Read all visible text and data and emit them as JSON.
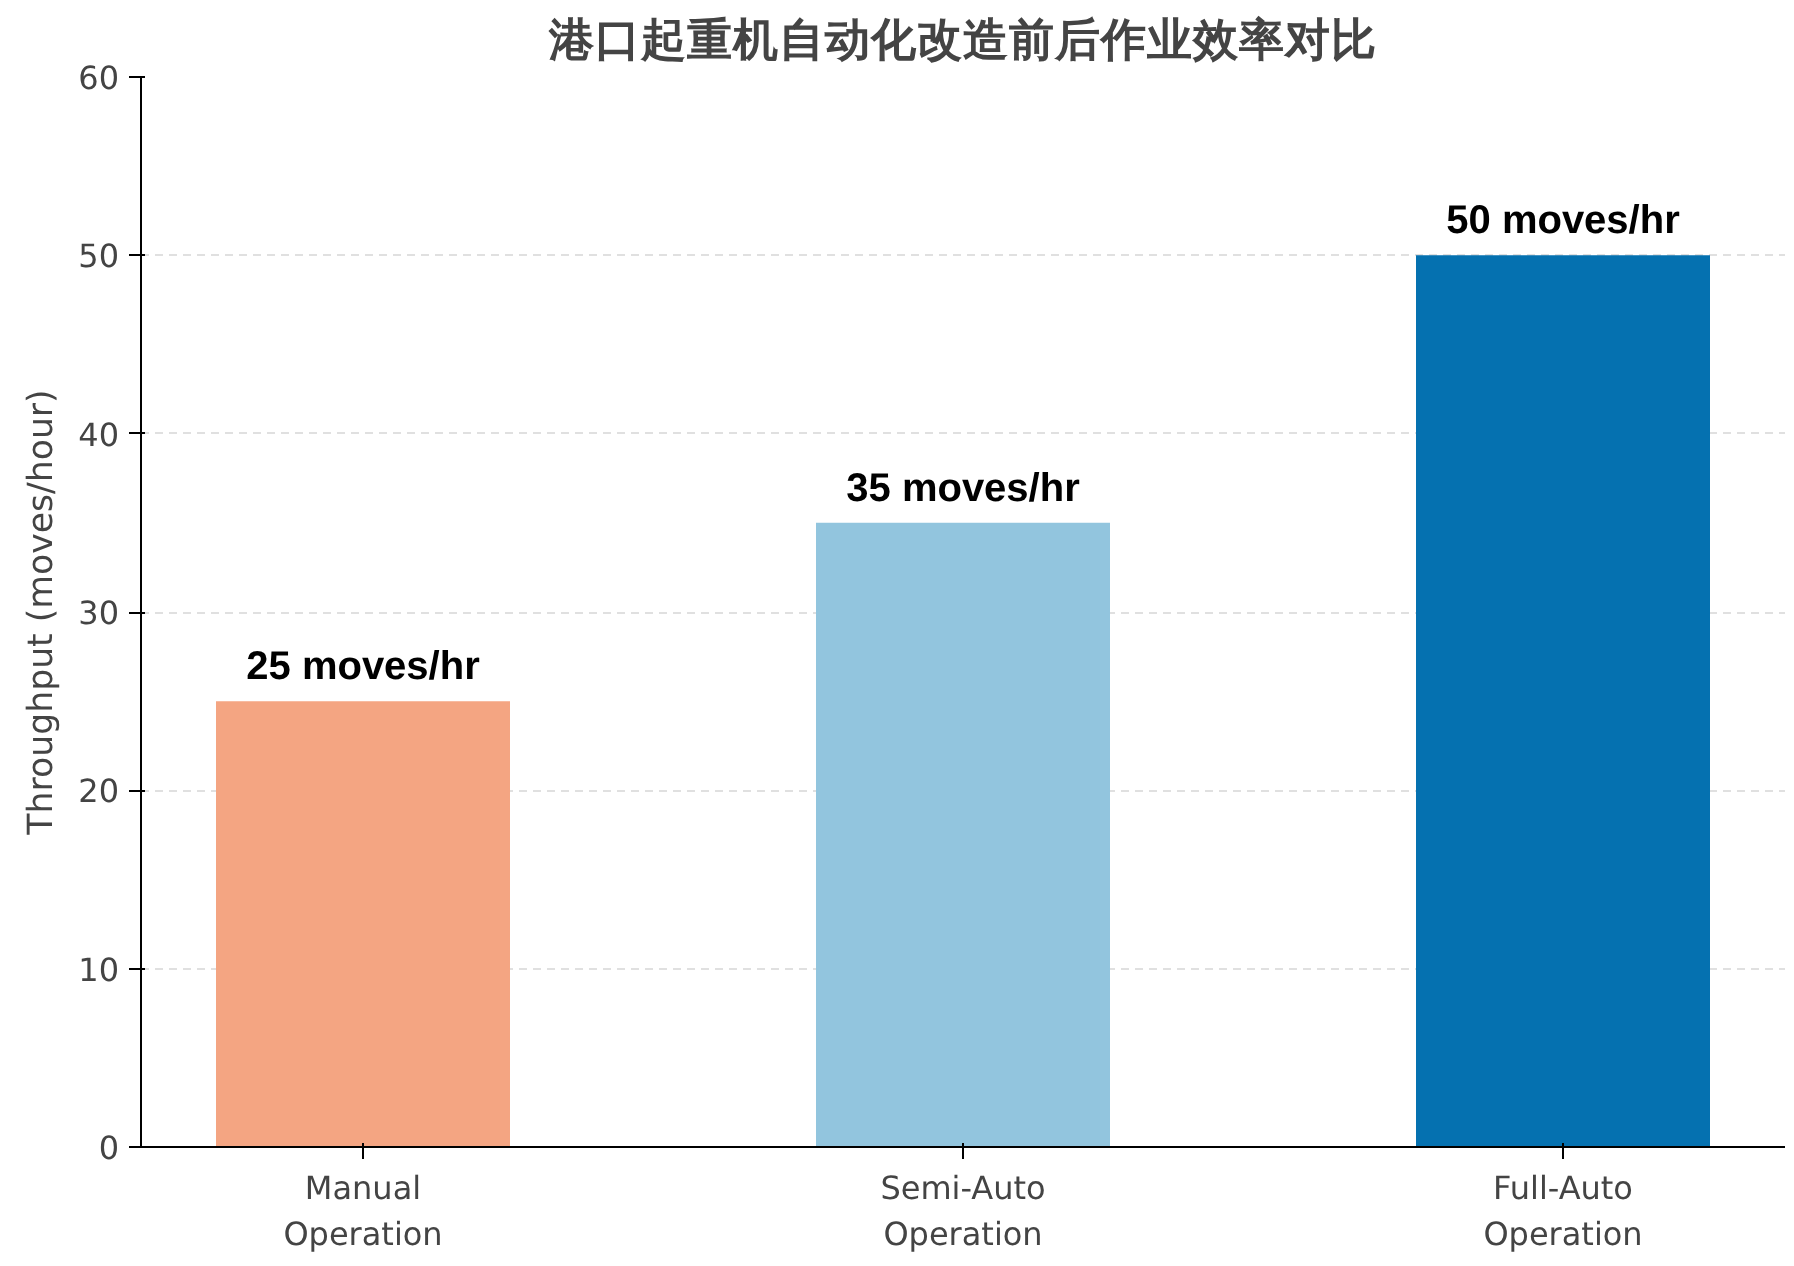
{
  "chart_data": {
    "type": "bar",
    "title": "港口起重机自动化改造前后作业效率对比",
    "ylabel": "Throughput (moves/hour)",
    "categories": [
      "Manual\nOperation",
      "Semi-Auto\nOperation",
      "Full-Auto\nOperation"
    ],
    "values": [
      25,
      35,
      50
    ],
    "colors": [
      "#f4a582",
      "#92c5de",
      "#0571b0"
    ],
    "value_labels": [
      "25 moves/hr",
      "35 moves/hr",
      "50 moves/hr"
    ],
    "ylim": [
      0,
      60
    ],
    "yticks": [
      0,
      10,
      20,
      30,
      40,
      50,
      60
    ],
    "grid": "y"
  }
}
